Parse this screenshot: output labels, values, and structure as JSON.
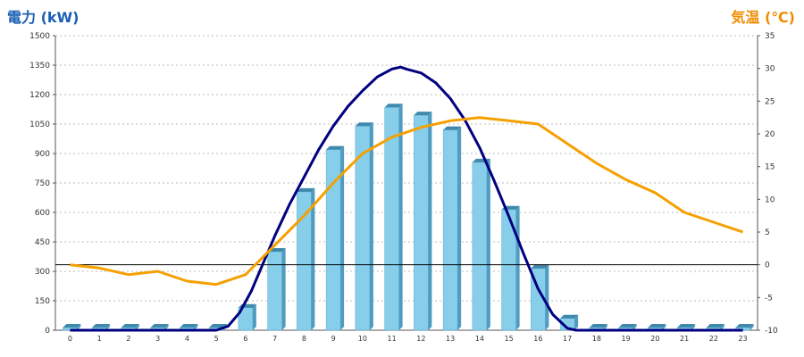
{
  "chart_data": {
    "type": "bar",
    "left_axis_title": "電力 (kW)",
    "right_axis_title": "気温 (℃)",
    "x": [
      "0",
      "1",
      "2",
      "3",
      "4",
      "5",
      "6",
      "7",
      "8",
      "9",
      "10",
      "11",
      "12",
      "13",
      "14",
      "15",
      "16",
      "17",
      "18",
      "19",
      "20",
      "21",
      "22",
      "23"
    ],
    "left_axis": {
      "ylim": [
        0,
        1500
      ],
      "ticks": [
        "0",
        "150",
        "300",
        "450",
        "600",
        "750",
        "900",
        "1050",
        "1200",
        "1350",
        "1500"
      ]
    },
    "right_axis": {
      "ylim": [
        -10,
        35
      ],
      "ticks": [
        "-10",
        "-5",
        "0",
        "5",
        "10",
        "15",
        "20",
        "25",
        "30",
        "35"
      ]
    },
    "grid": true,
    "series": [
      {
        "kind": "bar",
        "axis": "left",
        "color": "#87ceeb",
        "values": [
          0,
          0,
          0,
          0,
          0,
          0,
          115,
          400,
          705,
          920,
          1040,
          1135,
          1095,
          1020,
          855,
          615,
          315,
          60,
          0,
          0,
          0,
          0,
          0,
          0
        ]
      },
      {
        "kind": "line",
        "axis": "left",
        "color": "#000080",
        "points": [
          [
            0,
            0
          ],
          [
            5,
            0
          ],
          [
            5.4,
            20
          ],
          [
            5.8,
            90
          ],
          [
            6.2,
            200
          ],
          [
            6.6,
            340
          ],
          [
            7,
            480
          ],
          [
            7.5,
            640
          ],
          [
            8,
            780
          ],
          [
            8.5,
            920
          ],
          [
            9,
            1040
          ],
          [
            9.5,
            1140
          ],
          [
            10,
            1220
          ],
          [
            10.5,
            1290
          ],
          [
            11,
            1330
          ],
          [
            11.3,
            1340
          ],
          [
            11.5,
            1330
          ],
          [
            12,
            1310
          ],
          [
            12.5,
            1260
          ],
          [
            13,
            1180
          ],
          [
            13.5,
            1070
          ],
          [
            14,
            930
          ],
          [
            14.5,
            760
          ],
          [
            15,
            580
          ],
          [
            15.5,
            390
          ],
          [
            16,
            210
          ],
          [
            16.5,
            80
          ],
          [
            17,
            10
          ],
          [
            17.3,
            0
          ],
          [
            23,
            0
          ]
        ]
      },
      {
        "kind": "line",
        "axis": "right",
        "color": "#f5a000",
        "values": [
          0,
          -0.5,
          -1.5,
          -1,
          -2.5,
          -3,
          -1.5,
          3,
          7.5,
          12.5,
          17,
          19.5,
          21,
          22,
          22.5,
          22,
          21.5,
          18.5,
          15.5,
          13,
          11,
          8,
          6.5,
          5
        ]
      }
    ],
    "reference_line": {
      "axis": "right",
      "value": 0,
      "color": "#000000"
    }
  }
}
